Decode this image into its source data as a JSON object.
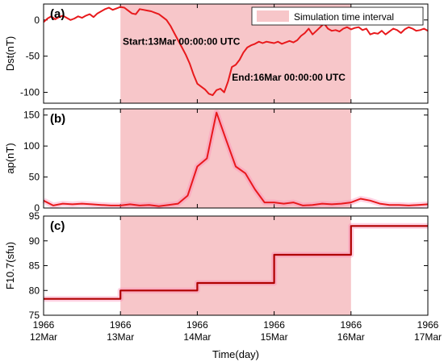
{
  "colors": {
    "shade": "#f7c6c9",
    "line_red": "#e8191c",
    "line_brown": "#b00000",
    "glow": "#ff7fb0",
    "axis": "#000000"
  },
  "chart_data": [
    {
      "type": "line",
      "panel_label": "(a)",
      "ylabel": "Dst(nT)",
      "ylim": [
        -115,
        22
      ],
      "yticks": [
        0,
        -50,
        -100
      ],
      "xlim": [
        0,
        5
      ],
      "shade_interval": [
        1,
        4
      ],
      "legend": {
        "label": "Simulation time interval",
        "placement": "top-right"
      },
      "annotations": [
        {
          "text": "Start:13Mar 00:00:00 UTC",
          "x": 1.03,
          "y": -34
        },
        {
          "text": "End:16Mar 00:00:00 UTC",
          "x": 2.45,
          "y": -84
        }
      ],
      "series": [
        {
          "x": [
            0,
            0.05,
            0.1,
            0.15,
            0.2,
            0.25,
            0.3,
            0.35,
            0.4,
            0.45,
            0.5,
            0.55,
            0.6,
            0.65,
            0.7,
            0.75,
            0.8,
            0.85,
            0.9,
            0.95,
            1.0,
            1.05,
            1.1,
            1.15,
            1.2,
            1.25,
            1.3,
            1.35,
            1.4,
            1.45,
            1.5,
            1.55,
            1.6,
            1.65,
            1.7,
            1.75,
            1.8,
            1.85,
            1.9,
            1.95,
            2.0,
            2.05,
            2.1,
            2.15,
            2.2,
            2.25,
            2.3,
            2.35,
            2.4,
            2.45,
            2.5,
            2.55,
            2.6,
            2.65,
            2.7,
            2.75,
            2.8,
            2.85,
            2.9,
            2.95,
            3.0,
            3.05,
            3.1,
            3.15,
            3.2,
            3.25,
            3.3,
            3.35,
            3.4,
            3.45,
            3.5,
            3.55,
            3.6,
            3.65,
            3.7,
            3.75,
            3.8,
            3.85,
            3.9,
            3.95,
            4.0,
            4.05,
            4.1,
            4.15,
            4.2,
            4.25,
            4.3,
            4.35,
            4.4,
            4.45,
            4.5,
            4.55,
            4.6,
            4.65,
            4.7,
            4.75,
            4.8,
            4.85,
            4.9,
            4.95,
            5.0
          ],
          "y": [
            -3,
            2,
            5,
            1,
            4,
            6,
            3,
            0,
            2,
            5,
            3,
            6,
            8,
            4,
            9,
            12,
            15,
            17,
            14,
            16,
            18,
            17,
            13,
            9,
            8,
            15,
            14,
            13,
            12,
            10,
            8,
            4,
            0,
            -8,
            -18,
            -28,
            -38,
            -48,
            -60,
            -75,
            -88,
            -92,
            -96,
            -102,
            -104,
            -97,
            -95,
            -100,
            -85,
            -65,
            -62,
            -55,
            -45,
            -38,
            -35,
            -33,
            -30,
            -32,
            -30,
            -31,
            -32,
            -30,
            -33,
            -31,
            -29,
            -31,
            -28,
            -22,
            -18,
            -12,
            -20,
            -15,
            -10,
            -5,
            -12,
            -15,
            -14,
            -16,
            -12,
            -10,
            -13,
            -11,
            -10,
            -14,
            -12,
            -20,
            -18,
            -19,
            -15,
            -20,
            -16,
            -12,
            -14,
            -18,
            -13,
            -10,
            -12,
            -15,
            -14,
            -12,
            -15
          ]
        }
      ]
    },
    {
      "type": "line",
      "panel_label": "(b)",
      "ylabel": "ap(nT)",
      "ylim": [
        0,
        160
      ],
      "yticks": [
        0,
        50,
        100,
        150
      ],
      "xlim": [
        0,
        5
      ],
      "shade_interval": [
        1,
        4
      ],
      "series": [
        {
          "x": [
            0,
            0.125,
            0.25,
            0.375,
            0.5,
            0.625,
            0.75,
            0.875,
            1.0,
            1.125,
            1.25,
            1.375,
            1.5,
            1.625,
            1.75,
            1.875,
            2.0,
            2.125,
            2.25,
            2.375,
            2.5,
            2.625,
            2.75,
            2.875,
            3.0,
            3.125,
            3.25,
            3.375,
            3.5,
            3.625,
            3.75,
            3.875,
            4.0,
            4.125,
            4.25,
            4.375,
            4.5,
            4.625,
            4.75,
            4.875,
            5.0
          ],
          "y": [
            12,
            4,
            7,
            6,
            7,
            6,
            5,
            4,
            4,
            6,
            4,
            5,
            3,
            5,
            7,
            20,
            67,
            80,
            154,
            110,
            67,
            56,
            30,
            9,
            9,
            7,
            9,
            4,
            5,
            7,
            6,
            7,
            9,
            15,
            12,
            7,
            5,
            5,
            4,
            5,
            6
          ]
        }
      ]
    },
    {
      "type": "line",
      "panel_label": "(c)",
      "ylabel": "F10.7(sfu)",
      "xlabel": "Time(day)",
      "ylim": [
        75,
        95
      ],
      "yticks": [
        75,
        80,
        85,
        90,
        95
      ],
      "xlim": [
        0,
        5
      ],
      "shade_interval": [
        1,
        4
      ],
      "xtick_labels": [
        {
          "year": "1966",
          "day": "12Mar"
        },
        {
          "year": "1966",
          "day": "13Mar"
        },
        {
          "year": "1966",
          "day": "14Mar"
        },
        {
          "year": "1966",
          "day": "15Mar"
        },
        {
          "year": "1966",
          "day": "16Mar"
        },
        {
          "year": "1966",
          "day": "17Mar"
        }
      ],
      "series": [
        {
          "step": true,
          "x": [
            0,
            1,
            2,
            3,
            4,
            5
          ],
          "y": [
            78.3,
            80.0,
            81.5,
            87.2,
            93.0,
            93.0
          ]
        }
      ]
    }
  ]
}
